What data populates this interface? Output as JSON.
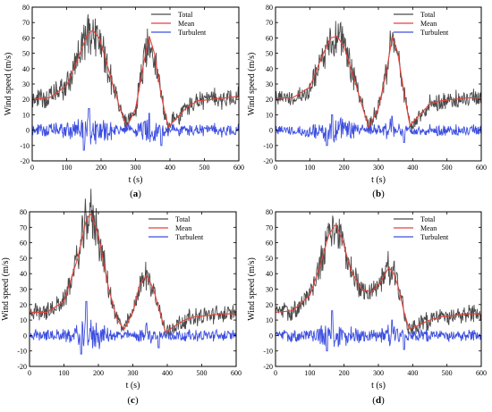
{
  "colors": {
    "total": "#4a4a4a",
    "mean": "#e8423a",
    "turbulent": "#3d4fe0"
  },
  "chart_data": [
    {
      "type": "line",
      "caption": "a",
      "xlabel": "t (s)",
      "ylabel": "Wind speed (m/s)",
      "xlim": [
        0,
        600
      ],
      "ylim": [
        -20,
        80
      ],
      "xticks": [
        "0",
        "100",
        "200",
        "300",
        "400",
        "500",
        "600"
      ],
      "yticks": [
        "-20",
        "-10",
        "0",
        "10",
        "20",
        "30",
        "40",
        "50",
        "60",
        "70",
        "80"
      ],
      "legend": {
        "position": "top-right",
        "entries": [
          "Total",
          "Mean",
          "Turbulent"
        ]
      },
      "mean_curve": {
        "x": [
          0,
          50,
          100,
          130,
          160,
          175,
          195,
          230,
          255,
          275,
          300,
          325,
          340,
          355,
          375,
          395,
          420,
          450,
          480,
          520,
          560,
          600
        ],
        "y": [
          20,
          21,
          29,
          45,
          62,
          65,
          60,
          33,
          14,
          2,
          14,
          45,
          61,
          50,
          22,
          2,
          8,
          15,
          19,
          20,
          21,
          22
        ]
      },
      "turbulence_amplitude": 3.5,
      "turbulent_peaks_y": [
        14,
        -13,
        11,
        -10
      ]
    },
    {
      "type": "line",
      "caption": "b",
      "xlabel": "t (s)",
      "ylabel": "Wind speed (m/s)",
      "xlim": [
        0,
        600
      ],
      "ylim": [
        -20,
        80
      ],
      "xticks": [
        "0",
        "100",
        "200",
        "300",
        "400",
        "500",
        "600"
      ],
      "yticks": [
        "-20",
        "-10",
        "0",
        "10",
        "20",
        "30",
        "40",
        "50",
        "60",
        "70",
        "80"
      ],
      "legend": {
        "position": "top-right",
        "entries": [
          "Total",
          "Mean",
          "Turbulent"
        ]
      },
      "mean_curve": {
        "x": [
          0,
          50,
          100,
          130,
          160,
          180,
          200,
          230,
          255,
          272,
          300,
          325,
          340,
          355,
          375,
          392,
          420,
          450,
          480,
          520,
          560,
          600
        ],
        "y": [
          21,
          21,
          28,
          45,
          60,
          61,
          54,
          33,
          14,
          2,
          14,
          40,
          60,
          52,
          24,
          3,
          10,
          17,
          19,
          20,
          21,
          21
        ]
      },
      "turbulence_amplitude": 3.0,
      "turbulent_peaks_y": [
        10,
        -10,
        9,
        -8
      ]
    },
    {
      "type": "line",
      "caption": "c",
      "xlabel": "t (s)",
      "ylabel": "Wind speed (m/s)",
      "xlim": [
        0,
        600
      ],
      "ylim": [
        -20,
        80
      ],
      "xticks": [
        "0",
        "100",
        "200",
        "300",
        "400",
        "500",
        "600"
      ],
      "yticks": [
        "-20",
        "-10",
        "0",
        "10",
        "20",
        "30",
        "40",
        "50",
        "60",
        "70",
        "80"
      ],
      "legend": {
        "position": "top-right",
        "entries": [
          "Total",
          "Mean",
          "Turbulent"
        ]
      },
      "mean_curve": {
        "x": [
          0,
          50,
          100,
          140,
          165,
          178,
          200,
          230,
          255,
          275,
          300,
          320,
          340,
          360,
          380,
          395,
          420,
          450,
          480,
          520,
          560,
          600
        ],
        "y": [
          15,
          15,
          22,
          50,
          75,
          79,
          65,
          30,
          10,
          4,
          15,
          33,
          39,
          30,
          14,
          2,
          6,
          10,
          12,
          13,
          14,
          14
        ]
      },
      "turbulence_amplitude": 3.0,
      "turbulent_peaks_y": [
        22,
        -12,
        8,
        -8
      ]
    },
    {
      "type": "line",
      "caption": "d",
      "xlabel": "t (s)",
      "ylabel": "Wind speed (m/s)",
      "xlim": [
        0,
        600
      ],
      "ylim": [
        -20,
        80
      ],
      "xticks": [
        "0",
        "100",
        "200",
        "300",
        "400",
        "500",
        "600"
      ],
      "yticks": [
        "-20",
        "-10",
        "0",
        "10",
        "20",
        "30",
        "40",
        "50",
        "60",
        "70",
        "80"
      ],
      "legend": {
        "position": "top-right",
        "entries": [
          "Total",
          "Mean",
          "Turbulent"
        ]
      },
      "mean_curve": {
        "x": [
          0,
          50,
          100,
          130,
          155,
          175,
          195,
          220,
          250,
          280,
          305,
          330,
          345,
          360,
          375,
          390,
          420,
          450,
          480,
          520,
          560,
          600
        ],
        "y": [
          15,
          16,
          26,
          45,
          65,
          72,
          62,
          42,
          30,
          28,
          34,
          44,
          40,
          30,
          15,
          4,
          7,
          10,
          12,
          13,
          14,
          14
        ]
      },
      "turbulence_amplitude": 3.0,
      "turbulent_peaks_y": [
        16,
        -10,
        10,
        -9
      ]
    }
  ]
}
